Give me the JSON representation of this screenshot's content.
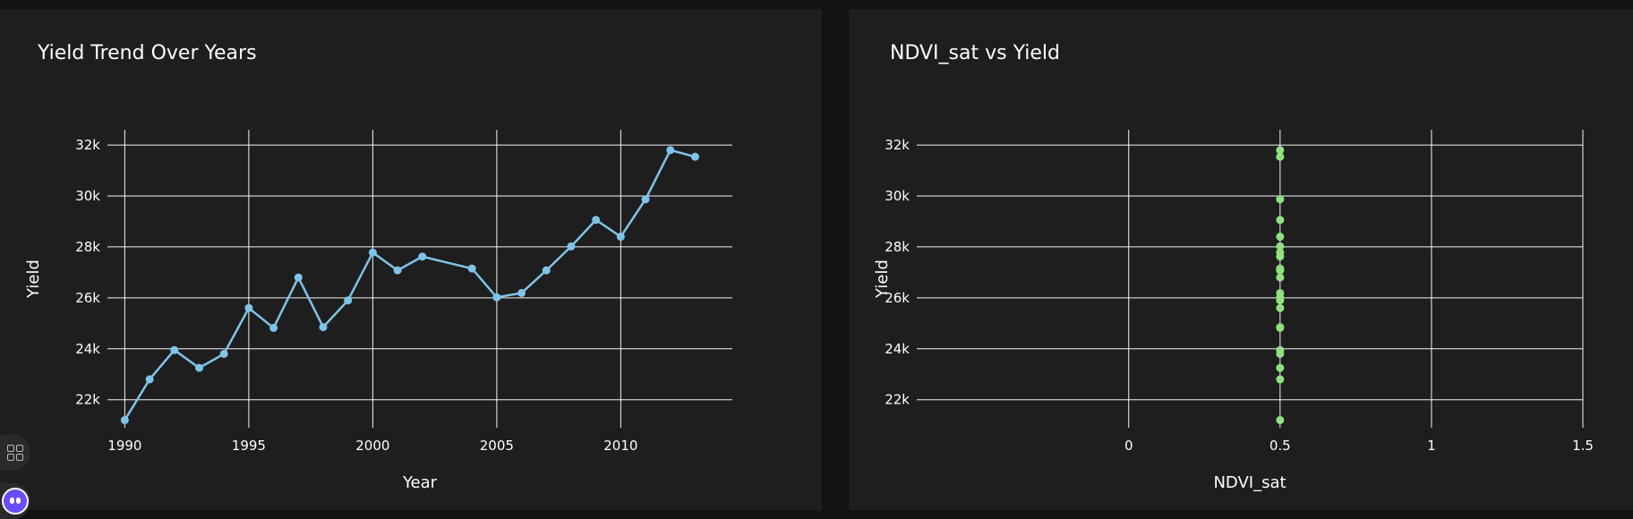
{
  "chart_data": [
    {
      "type": "line",
      "title": "Yield Trend Over Years",
      "xlabel": "Year",
      "ylabel": "Yield",
      "xlim": [
        1989.3,
        2014.5
      ],
      "ylim": [
        20900,
        32600
      ],
      "x_ticks": [
        1990,
        1995,
        2000,
        2005,
        2010
      ],
      "x_tick_labels": [
        "1990",
        "1995",
        "2000",
        "2005",
        "2010"
      ],
      "y_ticks": [
        22000,
        24000,
        26000,
        28000,
        30000,
        32000
      ],
      "y_tick_labels": [
        "22k",
        "24k",
        "26k",
        "28k",
        "30k",
        "32k"
      ],
      "grid": true,
      "color": "#7ec4e8",
      "x": [
        1990,
        1991,
        1992,
        1993,
        1994,
        1995,
        1996,
        1997,
        1998,
        1999,
        2000,
        2001,
        2002,
        2004,
        2005,
        2006,
        2007,
        2008,
        2009,
        2010,
        2011,
        2012,
        2013
      ],
      "y": [
        21200,
        22800,
        23950,
        23250,
        23800,
        25600,
        24820,
        26800,
        24850,
        25900,
        27780,
        27080,
        27620,
        27150,
        26020,
        26190,
        27080,
        28020,
        29060,
        28400,
        29870,
        31800,
        31540
      ]
    },
    {
      "type": "scatter",
      "title": "NDVI_sat vs Yield",
      "xlabel": "NDVI_sat",
      "ylabel": "Yield",
      "xlim": [
        -0.7,
        1.5
      ],
      "ylim": [
        20900,
        32600
      ],
      "x_ticks": [
        0,
        0.5,
        1,
        1.5
      ],
      "x_tick_labels": [
        "0",
        "0.5",
        "1",
        "1.5"
      ],
      "y_ticks": [
        22000,
        24000,
        26000,
        28000,
        30000,
        32000
      ],
      "y_tick_labels": [
        "22k",
        "24k",
        "26k",
        "28k",
        "30k",
        "32k"
      ],
      "grid": true,
      "color": "#90e080",
      "x": [
        0.5,
        0.5,
        0.5,
        0.5,
        0.5,
        0.5,
        0.5,
        0.5,
        0.5,
        0.5,
        0.5,
        0.5,
        0.5,
        0.5,
        0.5,
        0.5,
        0.5,
        0.5,
        0.5,
        0.5,
        0.5,
        0.5,
        0.5
      ],
      "y": [
        21200,
        22800,
        23950,
        23250,
        23800,
        25600,
        24820,
        26800,
        24850,
        25900,
        27780,
        27080,
        27620,
        27150,
        26020,
        26190,
        27080,
        28020,
        29060,
        28400,
        29870,
        31800,
        31540
      ]
    }
  ],
  "ui": {
    "grid_icon": "grid-icon",
    "assistant_icon": "assistant-icon"
  }
}
